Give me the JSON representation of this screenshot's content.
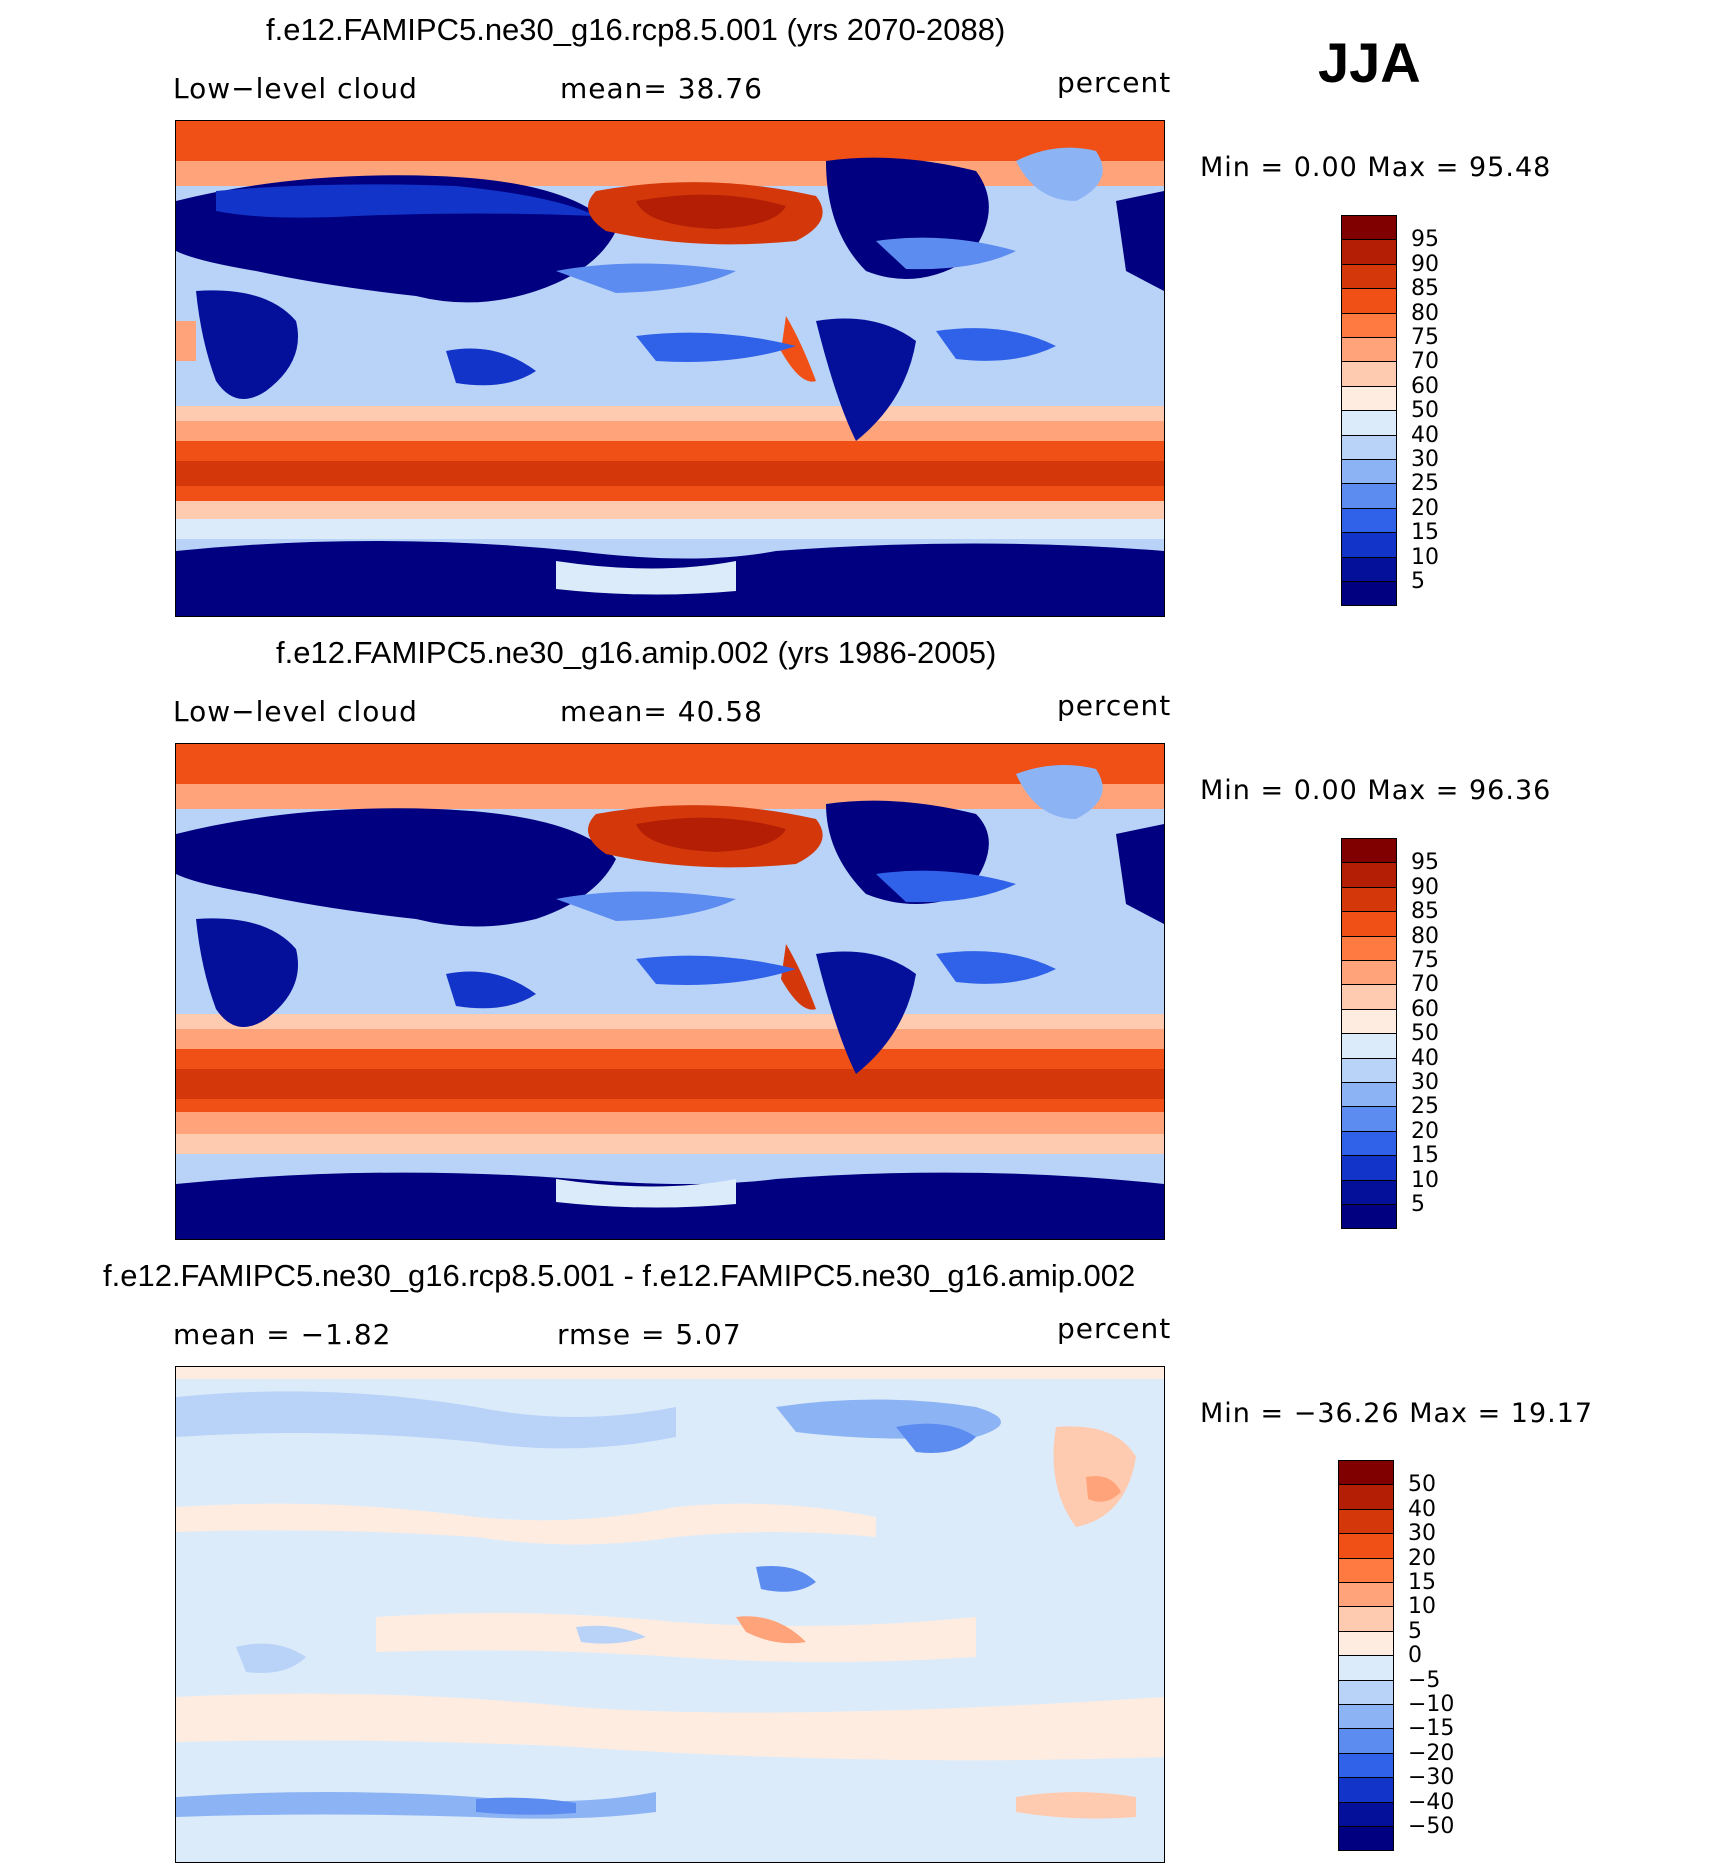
{
  "season": "JJA",
  "panels": [
    {
      "title": "f.e12.FAMIPC5.ne30_g16.rcp8.5.001 (yrs 2070-2088)",
      "left_label": "Low−level cloud",
      "center_label": "mean=   38.76",
      "units": "percent",
      "minmax": "Min =     0.00 Max =    95.48"
    },
    {
      "title": "f.e12.FAMIPC5.ne30_g16.amip.002 (yrs 1986-2005)",
      "left_label": "Low−level cloud",
      "center_label": "mean=   40.58",
      "units": "percent",
      "minmax": "Min =     0.00 Max =    96.36"
    },
    {
      "title": "f.e12.FAMIPC5.ne30_g16.rcp8.5.001 - f.e12.FAMIPC5.ne30_g16.amip.002",
      "left_label": "mean =   −1.82",
      "center_label": "rmse =     5.07",
      "units": "percent",
      "minmax": "Min = −36.26 Max =    19.17"
    }
  ],
  "colorbar_abs": {
    "labels": [
      "95",
      "90",
      "85",
      "80",
      "75",
      "70",
      "60",
      "50",
      "40",
      "30",
      "25",
      "20",
      "15",
      "10",
      "5"
    ],
    "colors": [
      "#800000",
      "#b31e05",
      "#d4380a",
      "#f05015",
      "#ff7a40",
      "#ffa47a",
      "#ffcbb0",
      "#ffece0",
      "#dcebfa",
      "#b8d2f8",
      "#8cb4f5",
      "#5c8cf0",
      "#2f62e8",
      "#1234c8",
      "#04109a",
      "#000080"
    ]
  },
  "colorbar_diff": {
    "labels": [
      "50",
      "40",
      "30",
      "20",
      "15",
      "10",
      "5",
      "0",
      "−5",
      "−10",
      "−15",
      "−20",
      "−30",
      "−40",
      "−50"
    ],
    "colors": [
      "#800000",
      "#b31e05",
      "#d4380a",
      "#f05015",
      "#ff7a40",
      "#ffa47a",
      "#ffcbb0",
      "#ffece0",
      "#dcebfa",
      "#b8d2f8",
      "#8cb4f5",
      "#5c8cf0",
      "#2f62e8",
      "#1234c8",
      "#04109a",
      "#000080"
    ]
  }
}
